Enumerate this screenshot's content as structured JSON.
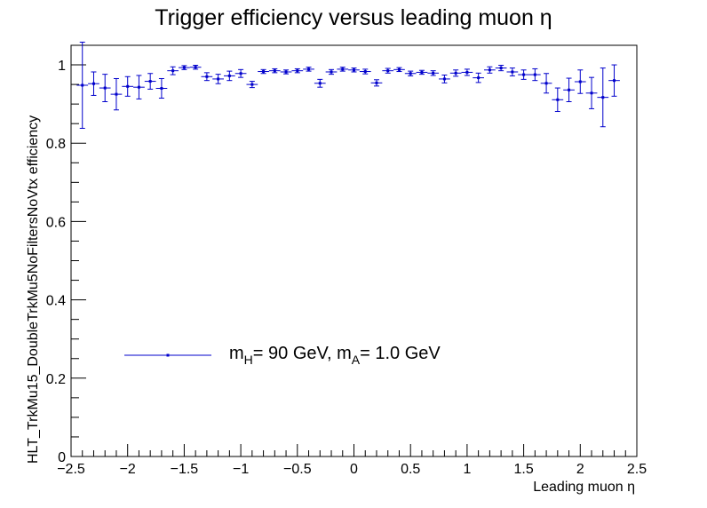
{
  "chart_data": {
    "type": "scatter",
    "title": "Trigger efficiency versus leading muon η",
    "xlabel": "Leading muon η",
    "ylabel": "HLT_TrkMu15_DoubleTrkMu5NoFiltersNoVtx efficiency",
    "xlim": [
      -2.5,
      2.5
    ],
    "ylim": [
      0,
      1.05
    ],
    "x_ticks": [
      "−2.5",
      "−2",
      "−1.5",
      "−1",
      "−0.5",
      "0",
      "0.5",
      "1",
      "1.5",
      "2",
      "2.5"
    ],
    "y_ticks": [
      "0",
      "0.2",
      "0.4",
      "0.6",
      "0.8",
      "1"
    ],
    "x_tick_values": [
      -2.5,
      -2,
      -1.5,
      -1,
      -0.5,
      0,
      0.5,
      1,
      1.5,
      2,
      2.5
    ],
    "y_tick_values": [
      0,
      0.2,
      0.4,
      0.6,
      0.8,
      1
    ],
    "grid": false,
    "legend_placement": "bottom-left",
    "color": "#0000cc",
    "series": [
      {
        "name": "m_H= 90 GeV, m_A= 1.0 GeV",
        "legend_main": "m",
        "legend_sub_1": "H",
        "legend_mid": "= 90 GeV, m",
        "legend_sub_2": "A",
        "legend_end": "= 1.0 GeV",
        "bin_half_width": 0.05,
        "x": [
          -2.4,
          -2.3,
          -2.2,
          -2.1,
          -2.0,
          -1.9,
          -1.8,
          -1.7,
          -1.6,
          -1.5,
          -1.4,
          -1.3,
          -1.2,
          -1.1,
          -1.0,
          -0.9,
          -0.8,
          -0.7,
          -0.6,
          -0.5,
          -0.4,
          -0.3,
          -0.2,
          -0.1,
          0.0,
          0.1,
          0.2,
          0.3,
          0.4,
          0.5,
          0.6,
          0.7,
          0.8,
          0.9,
          1.0,
          1.1,
          1.2,
          1.3,
          1.4,
          1.5,
          1.6,
          1.7,
          1.8,
          1.9,
          2.0,
          2.1,
          2.2,
          2.3
        ],
        "y": [
          0.948,
          0.952,
          0.941,
          0.925,
          0.945,
          0.943,
          0.958,
          0.94,
          0.985,
          0.993,
          0.994,
          0.97,
          0.964,
          0.972,
          0.978,
          0.95,
          0.983,
          0.985,
          0.982,
          0.985,
          0.989,
          0.953,
          0.982,
          0.989,
          0.987,
          0.983,
          0.954,
          0.985,
          0.988,
          0.978,
          0.981,
          0.979,
          0.964,
          0.979,
          0.981,
          0.967,
          0.987,
          0.992,
          0.982,
          0.975,
          0.975,
          0.953,
          0.911,
          0.936,
          0.957,
          0.928,
          0.917,
          0.96
        ],
        "y_err": [
          0.11,
          0.03,
          0.035,
          0.04,
          0.025,
          0.03,
          0.02,
          0.025,
          0.01,
          0.005,
          0.005,
          0.01,
          0.012,
          0.012,
          0.01,
          0.008,
          0.005,
          0.005,
          0.005,
          0.005,
          0.005,
          0.01,
          0.006,
          0.005,
          0.005,
          0.006,
          0.008,
          0.006,
          0.005,
          0.006,
          0.005,
          0.006,
          0.01,
          0.008,
          0.008,
          0.012,
          0.008,
          0.007,
          0.01,
          0.012,
          0.015,
          0.025,
          0.03,
          0.03,
          0.03,
          0.04,
          0.075,
          0.04
        ]
      }
    ]
  }
}
